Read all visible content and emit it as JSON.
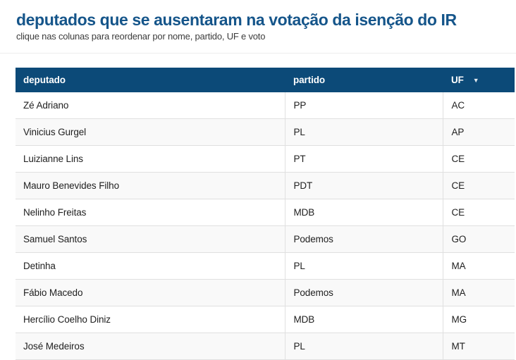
{
  "page": {
    "title": "deputados que se ausentaram na votação da isenção do IR",
    "subtitle": "clique nas colunas para reordenar por nome, partido, UF e voto"
  },
  "table": {
    "sort_icon": "▼",
    "columns": [
      {
        "key": "deputado",
        "label": "deputado",
        "sorted": false
      },
      {
        "key": "partido",
        "label": "partido",
        "sorted": false
      },
      {
        "key": "uf",
        "label": "UF",
        "sorted": true,
        "sort_direction": "desc"
      }
    ],
    "rows": [
      {
        "deputado": "Zé Adriano",
        "partido": "PP",
        "uf": "AC"
      },
      {
        "deputado": "Vinicius Gurgel",
        "partido": "PL",
        "uf": "AP"
      },
      {
        "deputado": "Luizianne Lins",
        "partido": "PT",
        "uf": "CE"
      },
      {
        "deputado": "Mauro Benevides Filho",
        "partido": "PDT",
        "uf": "CE"
      },
      {
        "deputado": "Nelinho Freitas",
        "partido": "MDB",
        "uf": "CE"
      },
      {
        "deputado": "Samuel Santos",
        "partido": "Podemos",
        "uf": "GO"
      },
      {
        "deputado": "Detinha",
        "partido": "PL",
        "uf": "MA"
      },
      {
        "deputado": "Fábio Macedo",
        "partido": "Podemos",
        "uf": "MA"
      },
      {
        "deputado": "Hercílio Coelho Diniz",
        "partido": "MDB",
        "uf": "MG"
      },
      {
        "deputado": "José Medeiros",
        "partido": "PL",
        "uf": "MT"
      }
    ]
  },
  "colors": {
    "title_color": "#15558a",
    "subtitle_color": "#3c3c3c",
    "header_bg": "#0c4a78",
    "header_text": "#ffffff",
    "row_text": "#212121",
    "zebra_bg": "#f9f9f9",
    "border_color": "#e0e0e0",
    "divider_color": "#ededed"
  }
}
